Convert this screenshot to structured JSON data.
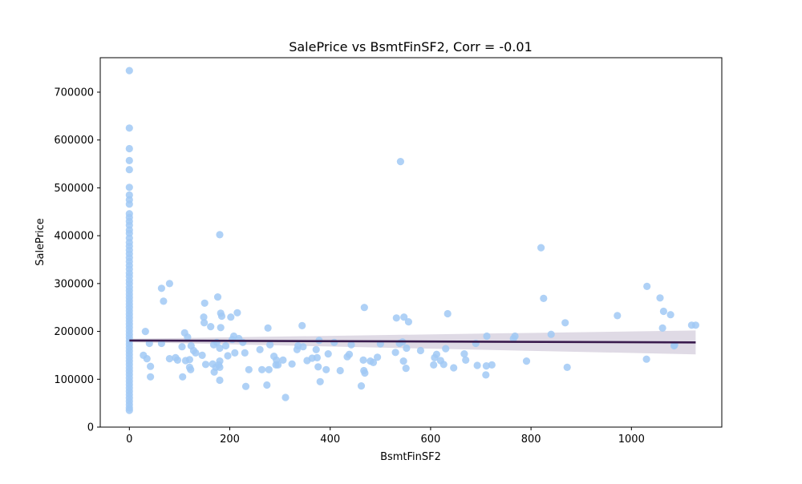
{
  "chart_data": {
    "type": "scatter",
    "title": "SalePrice vs BsmtFinSF2, Corr = -0.01",
    "xlabel": "BsmtFinSF2",
    "ylabel": "SalePrice",
    "xlim": [
      -58,
      1180
    ],
    "ylim": [
      0,
      772000
    ],
    "x_ticks": [
      0,
      200,
      400,
      600,
      800,
      1000
    ],
    "y_ticks": [
      0,
      100000,
      200000,
      300000,
      400000,
      500000,
      600000,
      700000
    ],
    "grid": false,
    "legend": "none",
    "colors": {
      "points": "#a1c9f4",
      "regression_line": "#3a1b4e",
      "confidence_band": "#d9d3e0"
    },
    "series": [
      {
        "points": [
          [
            0,
            745000
          ],
          [
            0,
            625000
          ],
          [
            0,
            582000
          ],
          [
            0,
            557000
          ],
          [
            0,
            538000
          ],
          [
            0,
            501000
          ],
          [
            0,
            485000
          ],
          [
            0,
            475000
          ],
          [
            0,
            466000
          ],
          [
            0,
            446000
          ],
          [
            0,
            438000
          ],
          [
            0,
            430000
          ],
          [
            0,
            422000
          ],
          [
            0,
            412000
          ],
          [
            0,
            405000
          ],
          [
            0,
            395000
          ],
          [
            0,
            386000
          ],
          [
            0,
            378000
          ],
          [
            0,
            370000
          ],
          [
            0,
            362000
          ],
          [
            0,
            354000
          ],
          [
            0,
            346000
          ],
          [
            0,
            338000
          ],
          [
            0,
            330000
          ],
          [
            0,
            322000
          ],
          [
            0,
            315000
          ],
          [
            0,
            307000
          ],
          [
            0,
            300000
          ],
          [
            0,
            292000
          ],
          [
            0,
            285000
          ],
          [
            0,
            278000
          ],
          [
            0,
            271000
          ],
          [
            0,
            264000
          ],
          [
            0,
            257000
          ],
          [
            0,
            250000
          ],
          [
            0,
            243000
          ],
          [
            0,
            236000
          ],
          [
            0,
            229000
          ],
          [
            0,
            222000
          ],
          [
            0,
            215000
          ],
          [
            0,
            208000
          ],
          [
            0,
            201000
          ],
          [
            0,
            194000
          ],
          [
            0,
            187000
          ],
          [
            0,
            180000
          ],
          [
            0,
            173000
          ],
          [
            0,
            166000
          ],
          [
            0,
            159000
          ],
          [
            0,
            152000
          ],
          [
            0,
            145000
          ],
          [
            0,
            138000
          ],
          [
            0,
            131000
          ],
          [
            0,
            124000
          ],
          [
            0,
            117000
          ],
          [
            0,
            110000
          ],
          [
            0,
            103000
          ],
          [
            0,
            96000
          ],
          [
            0,
            89000
          ],
          [
            0,
            82000
          ],
          [
            0,
            75000
          ],
          [
            0,
            68000
          ],
          [
            0,
            61000
          ],
          [
            0,
            54000
          ],
          [
            0,
            47000
          ],
          [
            0,
            40000
          ],
          [
            0,
            35000
          ],
          [
            28,
            150000
          ],
          [
            32,
            200000
          ],
          [
            35,
            143000
          ],
          [
            40,
            175000
          ],
          [
            42,
            127000
          ],
          [
            42,
            105000
          ],
          [
            64,
            290000
          ],
          [
            64,
            175000
          ],
          [
            68,
            263000
          ],
          [
            80,
            300000
          ],
          [
            80,
            143000
          ],
          [
            92,
            145000
          ],
          [
            96,
            140000
          ],
          [
            105,
            168000
          ],
          [
            106,
            105000
          ],
          [
            110,
            197000
          ],
          [
            112,
            139000
          ],
          [
            116,
            188000
          ],
          [
            120,
            141000
          ],
          [
            120,
            125000
          ],
          [
            122,
            120000
          ],
          [
            123,
            170000
          ],
          [
            128,
            160000
          ],
          [
            132,
            155000
          ],
          [
            145,
            150000
          ],
          [
            148,
            230000
          ],
          [
            149,
            218000
          ],
          [
            150,
            259000
          ],
          [
            152,
            131000
          ],
          [
            162,
            210000
          ],
          [
            166,
            132000
          ],
          [
            168,
            172000
          ],
          [
            169,
            115000
          ],
          [
            172,
            125000
          ],
          [
            174,
            177000
          ],
          [
            176,
            272000
          ],
          [
            178,
            130000
          ],
          [
            180,
            165000
          ],
          [
            180,
            138000
          ],
          [
            180,
            125000
          ],
          [
            180,
            98000
          ],
          [
            180,
            402000
          ],
          [
            182,
            238000
          ],
          [
            182,
            208000
          ],
          [
            184,
            232000
          ],
          [
            192,
            170000
          ],
          [
            196,
            149000
          ],
          [
            202,
            230000
          ],
          [
            205,
            183000
          ],
          [
            208,
            190000
          ],
          [
            210,
            155000
          ],
          [
            215,
            239000
          ],
          [
            218,
            185000
          ],
          [
            226,
            177000
          ],
          [
            230,
            155000
          ],
          [
            232,
            85000
          ],
          [
            238,
            120000
          ],
          [
            260,
            162000
          ],
          [
            264,
            120000
          ],
          [
            274,
            88000
          ],
          [
            276,
            207000
          ],
          [
            278,
            120000
          ],
          [
            280,
            172000
          ],
          [
            288,
            148000
          ],
          [
            292,
            130000
          ],
          [
            293,
            140000
          ],
          [
            296,
            130000
          ],
          [
            306,
            140000
          ],
          [
            311,
            62000
          ],
          [
            324,
            132000
          ],
          [
            334,
            162000
          ],
          [
            336,
            170000
          ],
          [
            344,
            212000
          ],
          [
            346,
            168000
          ],
          [
            354,
            139000
          ],
          [
            364,
            144000
          ],
          [
            372,
            162000
          ],
          [
            374,
            145000
          ],
          [
            376,
            126000
          ],
          [
            378,
            181000
          ],
          [
            380,
            95000
          ],
          [
            392,
            120000
          ],
          [
            396,
            153000
          ],
          [
            408,
            177000
          ],
          [
            420,
            118000
          ],
          [
            434,
            147000
          ],
          [
            438,
            152000
          ],
          [
            442,
            172000
          ],
          [
            462,
            86000
          ],
          [
            466,
            140000
          ],
          [
            467,
            118000
          ],
          [
            468,
            250000
          ],
          [
            469,
            113000
          ],
          [
            480,
            138000
          ],
          [
            486,
            135000
          ],
          [
            494,
            146000
          ],
          [
            500,
            174000
          ],
          [
            530,
            156000
          ],
          [
            532,
            228000
          ],
          [
            538,
            175000
          ],
          [
            540,
            555000
          ],
          [
            544,
            178000
          ],
          [
            546,
            138000
          ],
          [
            547,
            230000
          ],
          [
            551,
            123000
          ],
          [
            552,
            165000
          ],
          [
            556,
            220000
          ],
          [
            580,
            160000
          ],
          [
            606,
            130000
          ],
          [
            608,
            145000
          ],
          [
            612,
            152000
          ],
          [
            620,
            139000
          ],
          [
            626,
            131000
          ],
          [
            630,
            164000
          ],
          [
            634,
            237000
          ],
          [
            646,
            124000
          ],
          [
            667,
            153000
          ],
          [
            670,
            140000
          ],
          [
            690,
            175000
          ],
          [
            693,
            129000
          ],
          [
            710,
            109000
          ],
          [
            711,
            128000
          ],
          [
            712,
            190000
          ],
          [
            722,
            130000
          ],
          [
            765,
            185000
          ],
          [
            768,
            190000
          ],
          [
            791,
            138000
          ],
          [
            820,
            375000
          ],
          [
            825,
            269000
          ],
          [
            840,
            194000
          ],
          [
            868,
            218000
          ],
          [
            872,
            125000
          ],
          [
            972,
            233000
          ],
          [
            1030,
            142000
          ],
          [
            1031,
            294000
          ],
          [
            1057,
            270000
          ],
          [
            1062,
            207000
          ],
          [
            1064,
            242000
          ],
          [
            1078,
            235000
          ],
          [
            1085,
            170000
          ],
          [
            1086,
            172000
          ],
          [
            1120,
            213000
          ],
          [
            1128,
            213000
          ]
        ]
      }
    ],
    "regression": {
      "x_range": [
        0,
        1128
      ],
      "y_start": 181000,
      "y_end": 177000,
      "band_halfwidth_start": 3500,
      "band_halfwidth_end": 25000
    }
  }
}
